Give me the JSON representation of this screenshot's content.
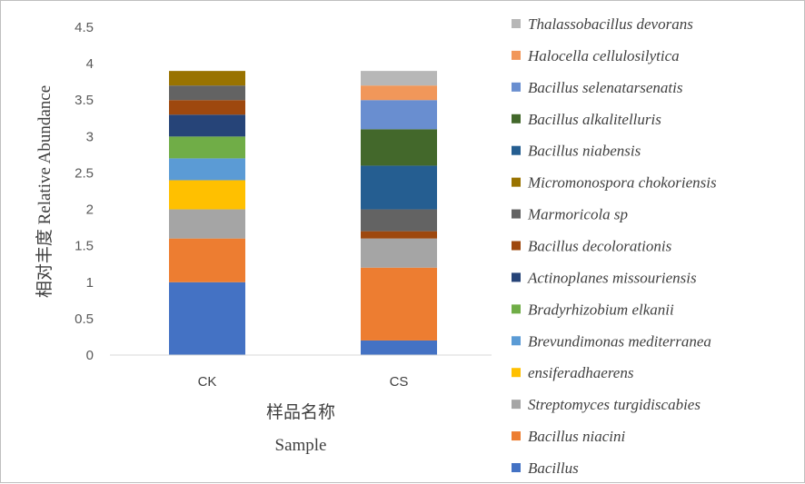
{
  "chart_data": {
    "type": "bar",
    "stacked": true,
    "categories": [
      "CK",
      "CS"
    ],
    "xlabel_lines": [
      "样品名称",
      "Sample"
    ],
    "ylabel": "相对丰度 Relative Abundance",
    "ylim": [
      0,
      4.5
    ],
    "yticks": [
      0,
      0.5,
      1,
      1.5,
      2,
      2.5,
      3,
      3.5,
      4,
      4.5
    ],
    "ytick_labels": [
      "0",
      "0.5",
      "1",
      "1.5",
      "2",
      "2.5",
      "3",
      "3.5",
      "4",
      "4.5"
    ],
    "grid": false,
    "legend_position": "right",
    "series": [
      {
        "name": "Bacillus",
        "color": "#4472C4",
        "values": [
          1.0,
          0.2
        ]
      },
      {
        "name": "Bacillus niacini",
        "color": "#ED7D31",
        "values": [
          0.6,
          1.0
        ]
      },
      {
        "name": "Streptomyces turgidiscabies",
        "color": "#A5A5A5",
        "values": [
          0.4,
          0.4
        ]
      },
      {
        "name": "ensiferadhaerens",
        "color": "#FFC000",
        "values": [
          0.4,
          0.0
        ]
      },
      {
        "name": "Brevundimonas mediterranea",
        "color": "#5B9BD5",
        "values": [
          0.3,
          0.0
        ]
      },
      {
        "name": "Bradyrhizobium elkanii",
        "color": "#70AD47",
        "values": [
          0.3,
          0.0
        ]
      },
      {
        "name": "Actinoplanes missouriensis",
        "color": "#264478",
        "values": [
          0.3,
          0.0
        ]
      },
      {
        "name": "Bacillus decolorationis",
        "color": "#9E480E",
        "values": [
          0.2,
          0.1
        ]
      },
      {
        "name": "Marmoricola sp",
        "color": "#636363",
        "values": [
          0.2,
          0.3
        ]
      },
      {
        "name": "Micromonospora chokoriensis",
        "color": "#997300",
        "values": [
          0.2,
          0.0
        ]
      },
      {
        "name": "Bacillus niabensis",
        "color": "#255E91",
        "values": [
          0.0,
          0.6
        ]
      },
      {
        "name": "Bacillus alkalitelluris",
        "color": "#43682B",
        "values": [
          0.0,
          0.5
        ]
      },
      {
        "name": "Bacillus selenatarsenatis",
        "color": "#698ED0",
        "values": [
          0.0,
          0.4
        ]
      },
      {
        "name": "Halocella cellulosilytica",
        "color": "#F1975A",
        "values": [
          0.0,
          0.2
        ]
      },
      {
        "name": "Thalassobacillus devorans",
        "color": "#B7B7B7",
        "values": [
          0.0,
          0.2
        ]
      }
    ]
  }
}
